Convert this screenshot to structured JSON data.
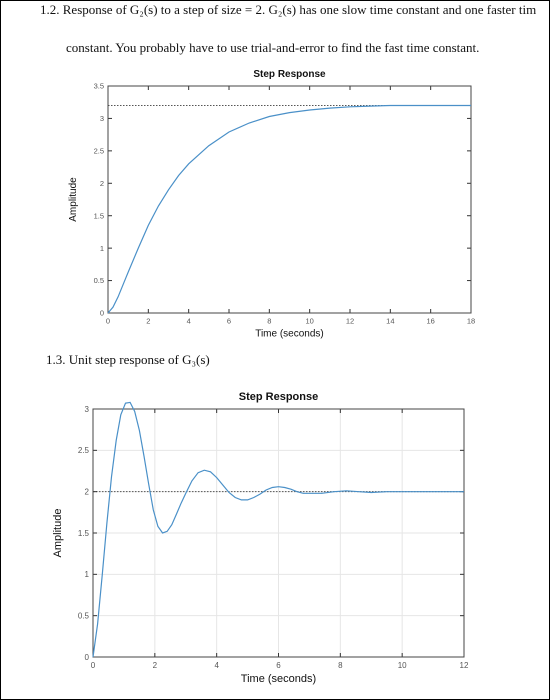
{
  "question_1_2": {
    "line1": "1.2. Response of G₂(s) to a step of size = 2. G₂(s) has one slow time constant and one faster tim",
    "line2": "constant. You probably have to use trial-and-error to find the fast time constant."
  },
  "question_1_3": {
    "line1": "1.3. Unit step response of G₃(s)"
  },
  "chart_data": [
    {
      "type": "line",
      "title": "Step Response",
      "xlabel": "Time (seconds)",
      "ylabel": "Amplitude",
      "xlim": [
        0,
        18
      ],
      "ylim": [
        0,
        3.5
      ],
      "xticks": [
        0,
        2,
        4,
        6,
        8,
        10,
        12,
        14,
        16,
        18
      ],
      "yticks": [
        0,
        0.5,
        1,
        1.5,
        2,
        2.5,
        3,
        3.5
      ],
      "grid": false,
      "steady_state": 3.2,
      "series": [
        {
          "x": [
            0,
            0.25,
            0.5,
            1,
            1.5,
            2,
            2.5,
            3,
            3.5,
            4,
            5,
            6,
            7,
            8,
            9,
            10,
            11,
            12,
            13,
            14,
            15,
            16,
            17,
            18
          ],
          "values": [
            0,
            0.09,
            0.25,
            0.63,
            1.0,
            1.35,
            1.65,
            1.9,
            2.12,
            2.3,
            2.58,
            2.79,
            2.93,
            3.03,
            3.09,
            3.13,
            3.16,
            3.18,
            3.19,
            3.2,
            3.2,
            3.2,
            3.2,
            3.2
          ],
          "color": "#4a90c8"
        }
      ]
    },
    {
      "type": "line",
      "title": "Step Response",
      "xlabel": "Time (seconds)",
      "ylabel": "Amplitude",
      "xlim": [
        0,
        12
      ],
      "ylim": [
        0,
        3
      ],
      "xticks": [
        0,
        2,
        4,
        6,
        8,
        10,
        12
      ],
      "yticks": [
        0,
        0.5,
        1,
        1.5,
        2,
        2.5,
        3
      ],
      "grid": true,
      "steady_state": 2.0,
      "series": [
        {
          "x": [
            0,
            0.15,
            0.3,
            0.45,
            0.6,
            0.75,
            0.9,
            1.05,
            1.2,
            1.35,
            1.5,
            1.65,
            1.8,
            1.95,
            2.1,
            2.25,
            2.4,
            2.55,
            2.7,
            2.85,
            3.0,
            3.2,
            3.4,
            3.6,
            3.8,
            4.0,
            4.2,
            4.4,
            4.6,
            4.8,
            5.0,
            5.2,
            5.4,
            5.6,
            5.8,
            6.0,
            6.2,
            6.4,
            6.6,
            6.8,
            7.0,
            7.4,
            7.8,
            8.2,
            8.6,
            9.0,
            9.5,
            10.0,
            10.5,
            11.0,
            11.5,
            12.0
          ],
          "values": [
            0,
            0.4,
            1.0,
            1.62,
            2.18,
            2.62,
            2.93,
            3.07,
            3.08,
            2.97,
            2.74,
            2.43,
            2.09,
            1.78,
            1.58,
            1.5,
            1.52,
            1.6,
            1.73,
            1.86,
            1.98,
            2.13,
            2.23,
            2.26,
            2.24,
            2.17,
            2.08,
            1.99,
            1.93,
            1.9,
            1.9,
            1.93,
            1.97,
            2.02,
            2.05,
            2.06,
            2.05,
            2.03,
            2.0,
            1.98,
            1.98,
            1.98,
            2.0,
            2.01,
            2.0,
            1.99,
            2.0,
            2.0,
            2.0,
            2.0,
            2.0,
            2.0
          ],
          "color": "#4a90c8"
        }
      ]
    }
  ]
}
